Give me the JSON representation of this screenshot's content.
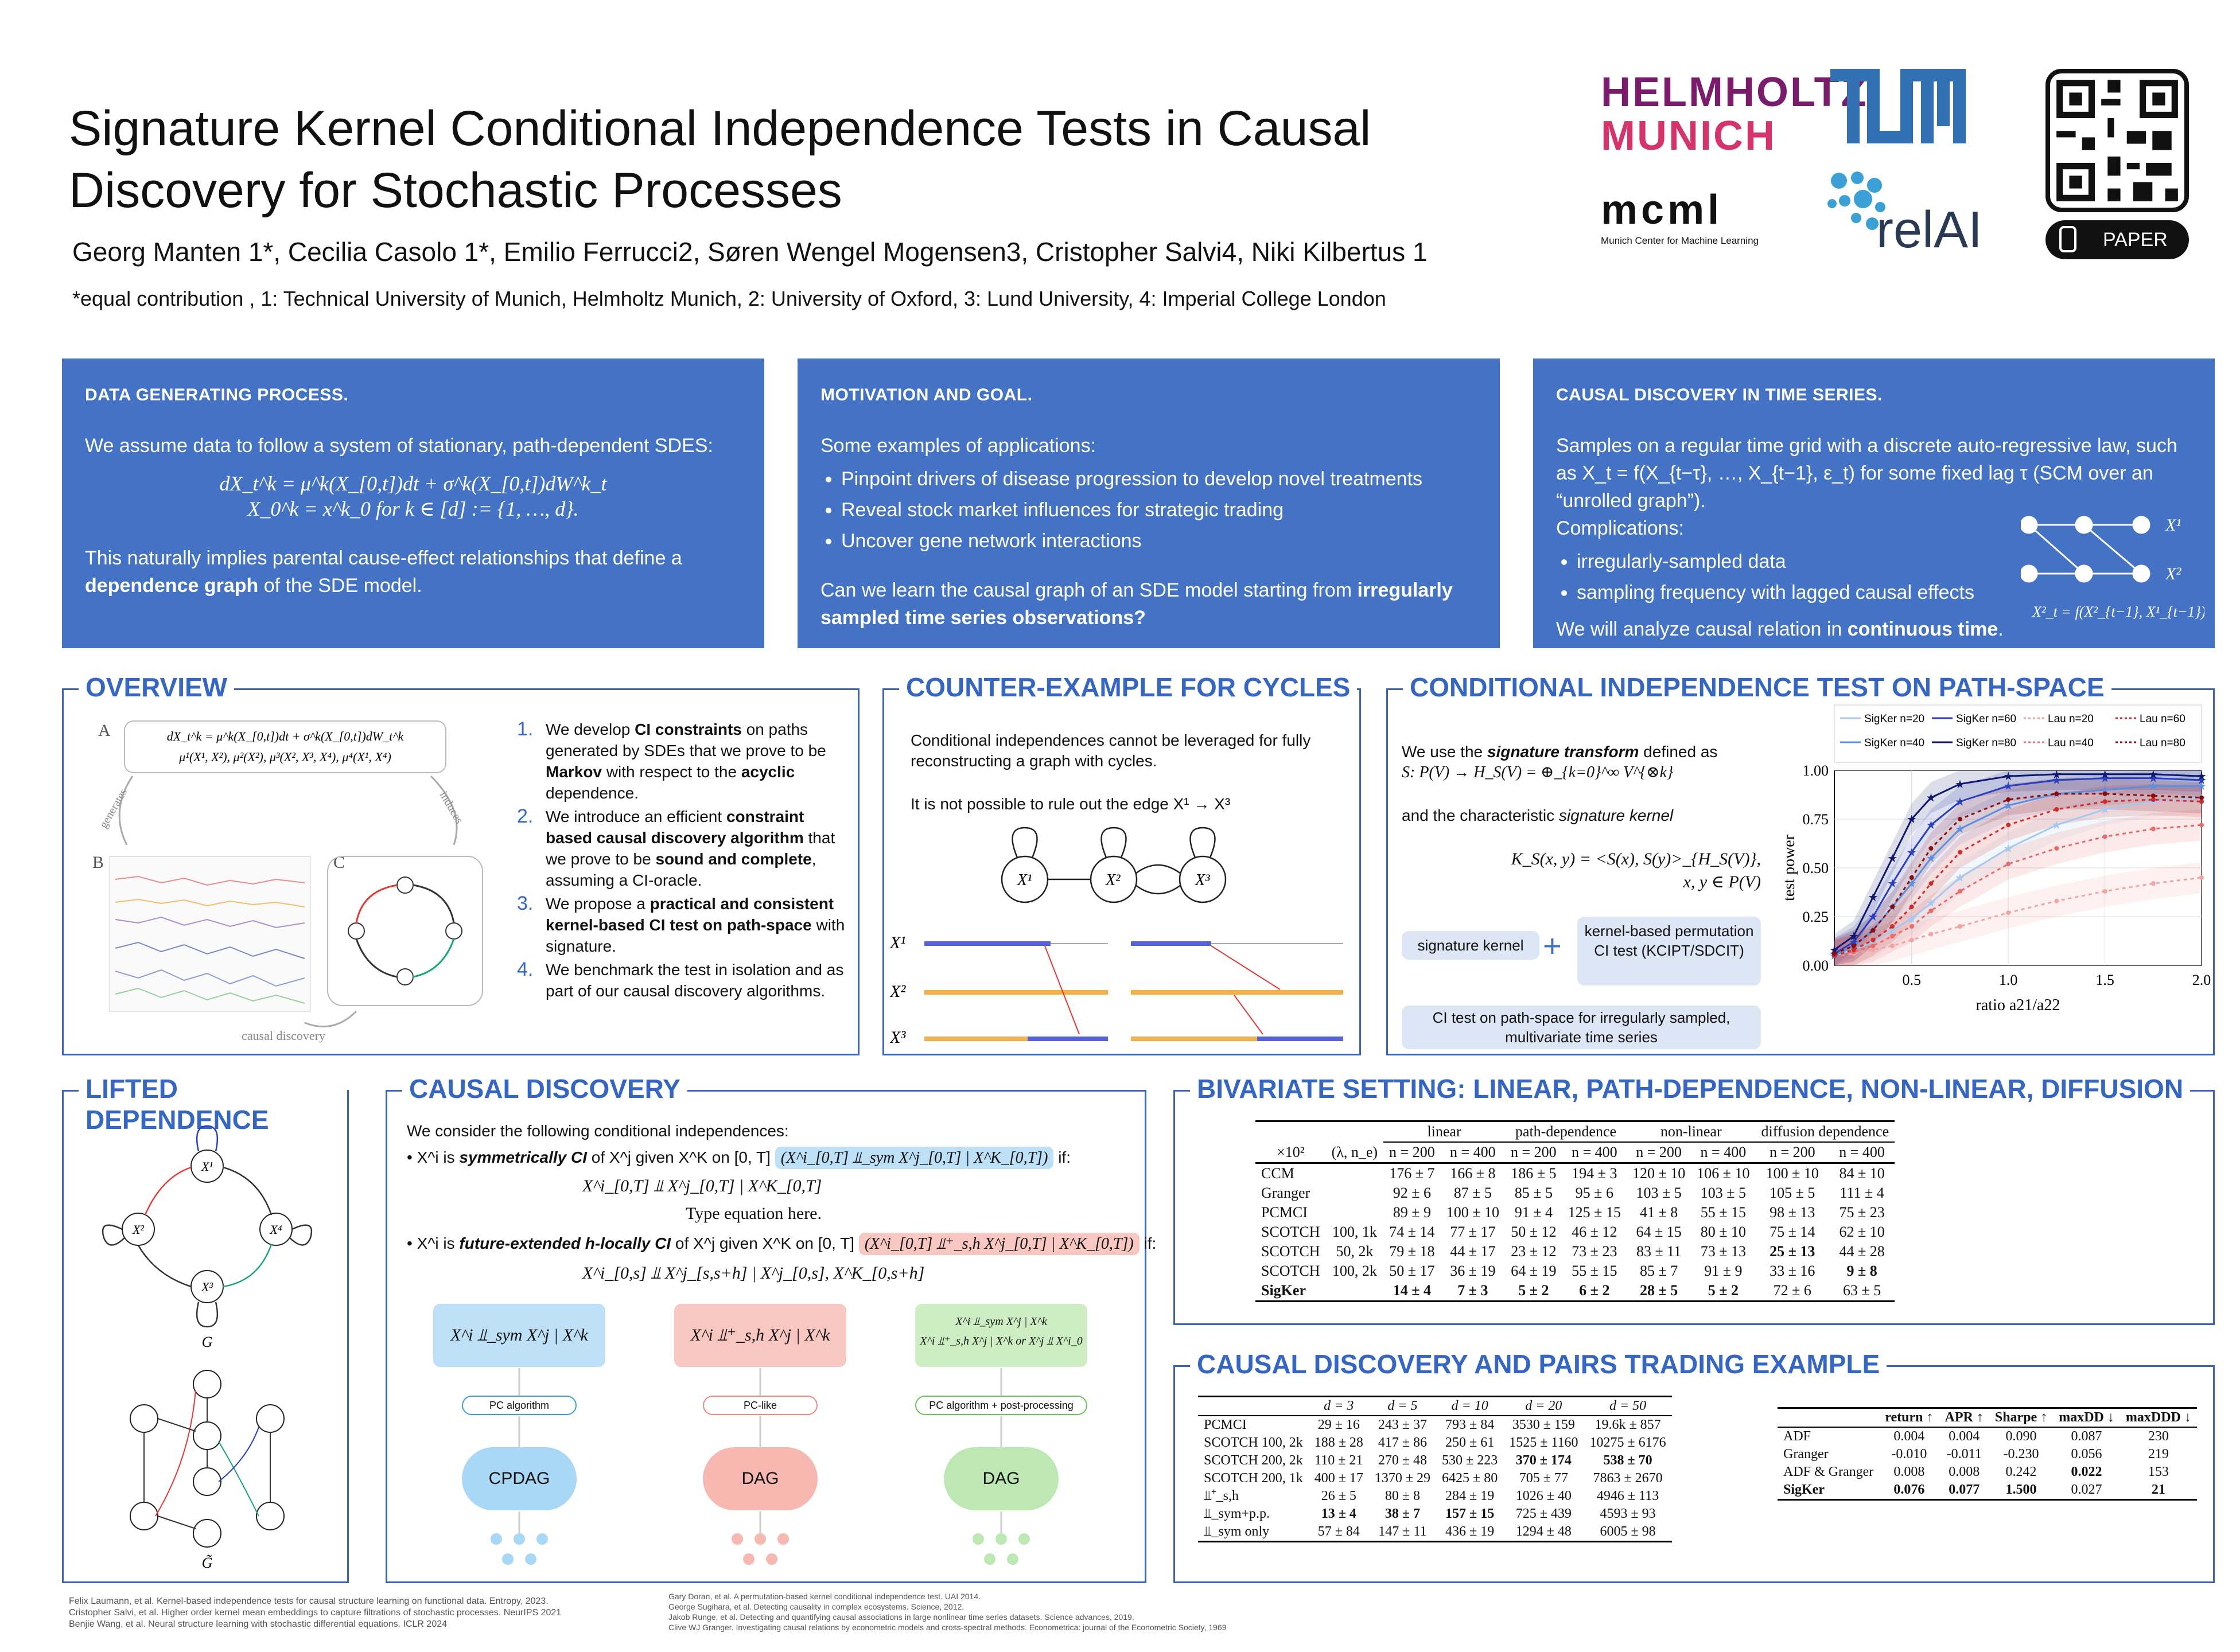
{
  "header": {
    "title": "Signature Kernel Conditional Independence Tests in Causal Discovery for Stochastic Processes",
    "authors": "Georg Manten 1*, Cecilia Casolo 1*, Emilio Ferrucci2, Søren Wengel Mogensen3, Cristopher Salvi4, Niki Kilbertus 1",
    "affiliations": "*equal contribution , 1: Technical University of Munich, Helmholtz Munich, 2: University of Oxford, 3: Lund University, 4: Imperial College London"
  },
  "logos": {
    "helmholtz1": "HELMHOLTZ",
    "helmholtz2": "MUNICH",
    "mcml": "mcml",
    "mcml_sub": "Munich Center for Machine Learning",
    "relai": "relAI",
    "paper_button": "PAPER"
  },
  "boxes": {
    "dgp": {
      "title": "DATA GENERATING PROCESS.",
      "text1": "We assume data to follow a system of stationary, path-dependent SDES:",
      "eq1": "dX_t^k = μ^k(X_[0,t])dt + σ^k(X_[0,t])dW^k_t",
      "eq2": "X_0^k = x^k_0 for k ∈ [d] := {1, …, d}.",
      "text2": "This naturally implies parental cause-effect relationships that define a",
      "text2b": "dependence graph",
      "text2c": " of the SDE model."
    },
    "motivation": {
      "title": "MOTIVATION AND GOAL.",
      "text1": "Some examples of applications:",
      "items": [
        "Pinpoint drivers of disease progression to develop novel treatments",
        "Reveal stock market influences for strategic trading",
        "Uncover gene network interactions"
      ],
      "q1": "Can we learn the causal graph of an SDE model starting from ",
      "q2": "irregularly sampled time series observation",
      "q3": "s?"
    },
    "timeseries": {
      "title": "CAUSAL DISCOVERY IN TIME SERIES.",
      "text1": "Samples on a regular time grid with a discrete auto-regressive law, such as X_t = f(X_{t−τ}, …, X_{t−1}, ε_t) for some fixed lag τ (SCM over an “unrolled graph”).",
      "text2": "Complications:",
      "items": [
        "irregularly-sampled data",
        "sampling frequency with lagged causal effects"
      ],
      "text3a": "We will analyze causal relation in ",
      "text3b": "continuous time",
      "text3c": ".",
      "fig_x1": "X¹",
      "fig_x2": "X²",
      "fig_eq": "X²_t = f(X²_{t−1}, X¹_{t−1})"
    }
  },
  "overview": {
    "title": "OVERVIEW",
    "fig_eq1": "dX_t^k = μ^k(X_[0,t])dt + σ^k(X_[0,t])dW_t^k",
    "fig_eq2": "μ¹(X¹, X²), μ²(X²), μ³(X², X³, X⁴), μ⁴(X¹, X⁴)",
    "fig_labels": [
      "A",
      "B",
      "C"
    ],
    "fig_arrows": [
      "generates",
      "induces",
      "causal discovery"
    ],
    "items": [
      {
        "num": "1.",
        "pre": "We develop ",
        "b1": "CI constraints",
        "mid": " on paths generated by SDEs that we prove to be ",
        "b2": "Markov",
        "mid2": " with respect to the ",
        "b3": "acyclic",
        "post": " dependence."
      },
      {
        "num": "2.",
        "pre": "We introduce an efficient ",
        "b1": "constraint based causal discovery algorithm",
        "mid": " that we prove to be ",
        "b2": "sound and complete",
        "mid2": ", assuming a CI-oracle.",
        "b3": "",
        "post": ""
      },
      {
        "num": "3.",
        "pre": "We propose a ",
        "b1": "practical and consistent kernel-based CI test on path-space",
        "mid": " with signature.",
        "b2": "",
        "mid2": "",
        "b3": "",
        "post": ""
      },
      {
        "num": "4.",
        "pre": "We benchmark the test in isolation and as part of our causal discovery algorithms.",
        "b1": "",
        "mid": "",
        "b2": "",
        "mid2": "",
        "b3": "",
        "post": ""
      }
    ]
  },
  "counter": {
    "title": "COUNTER-EXAMPLE FOR CYCLES",
    "text1": "Conditional independences cannot be leveraged for fully reconstructing a graph with cycles.",
    "text2": "It is not possible to rule out the edge X¹ → X³",
    "nodes": [
      "X¹",
      "X²",
      "X³"
    ]
  },
  "citest": {
    "title": "CONDITIONAL INDEPENDENCE TEST ON PATH-SPACE",
    "text1a": "We use the ",
    "text1b": "signature transform",
    "text1c": " defined as",
    "eq1": "S: P(V) → H_S(V) = ⊕_{k=0}^∞ V^{⊗k}",
    "text2a": "and the characteristic ",
    "text2b": "signature kernel",
    "eq2": "K_S(x, y) = <S(x), S(y)>_{H_S(V)},",
    "eq3": "x, y ∈ P(V)",
    "box1": "signature kernel",
    "box2": "kernel-based permutation CI test (KCIPT/SDCIT)",
    "box3": "CI test on path-space for irregularly sampled, multivariate time series"
  },
  "chart_data": {
    "type": "line",
    "xlabel": "ratio a21/a22",
    "ylabel": "test power",
    "xlim": [
      0.1,
      2.0
    ],
    "ylim": [
      0.0,
      1.0
    ],
    "x": [
      0.1,
      0.2,
      0.3,
      0.4,
      0.5,
      0.6,
      0.75,
      1.0,
      1.25,
      1.5,
      1.75,
      2.0
    ],
    "xticks": [
      "0.5",
      "1.0",
      "1.5",
      "2.0"
    ],
    "yticks": [
      "0.00",
      "0.25",
      "0.50",
      "0.75",
      "1.00"
    ],
    "series": [
      {
        "name": "SigKer n=20",
        "color": "#a9c8ee",
        "dash": false,
        "values": [
          0.05,
          0.08,
          0.12,
          0.18,
          0.24,
          0.32,
          0.45,
          0.6,
          0.72,
          0.8,
          0.84,
          0.86
        ]
      },
      {
        "name": "SigKer n=40",
        "color": "#5c8fe0",
        "dash": false,
        "values": [
          0.05,
          0.1,
          0.18,
          0.3,
          0.42,
          0.55,
          0.7,
          0.82,
          0.88,
          0.9,
          0.92,
          0.92
        ]
      },
      {
        "name": "SigKer n=60",
        "color": "#2a3fbf",
        "dash": false,
        "values": [
          0.06,
          0.12,
          0.25,
          0.42,
          0.58,
          0.72,
          0.84,
          0.92,
          0.95,
          0.96,
          0.96,
          0.95
        ]
      },
      {
        "name": "SigKer n=80",
        "color": "#10186e",
        "dash": false,
        "values": [
          0.08,
          0.15,
          0.35,
          0.55,
          0.75,
          0.86,
          0.93,
          0.97,
          0.98,
          0.98,
          0.98,
          0.97
        ]
      },
      {
        "name": "Lau n=20",
        "color": "#f2a3a3",
        "dash": true,
        "values": [
          0.05,
          0.06,
          0.08,
          0.1,
          0.13,
          0.16,
          0.2,
          0.27,
          0.33,
          0.38,
          0.42,
          0.45
        ]
      },
      {
        "name": "Lau n=40",
        "color": "#e86b6b",
        "dash": true,
        "values": [
          0.05,
          0.07,
          0.1,
          0.15,
          0.2,
          0.28,
          0.38,
          0.52,
          0.6,
          0.66,
          0.7,
          0.72
        ]
      },
      {
        "name": "Lau n=60",
        "color": "#d22b2b",
        "dash": true,
        "values": [
          0.05,
          0.08,
          0.13,
          0.2,
          0.3,
          0.42,
          0.58,
          0.72,
          0.8,
          0.84,
          0.85,
          0.84
        ]
      },
      {
        "name": "Lau n=80",
        "color": "#8b0c0c",
        "dash": true,
        "values": [
          0.06,
          0.1,
          0.18,
          0.3,
          0.45,
          0.6,
          0.75,
          0.85,
          0.88,
          0.88,
          0.87,
          0.86
        ]
      }
    ]
  },
  "lifted": {
    "title": "LIFTED DEPENDENCE",
    "g_label": "G",
    "g2_label": "G̃"
  },
  "causal": {
    "title": "CAUSAL DISCOVERY",
    "intro": "We consider the following conditional independences:",
    "b1a": "X^i is ",
    "b1b": "symmetrically CI",
    "b1c": " of X^j given X^K on [0, T]",
    "b1box": "(X^i_[0,T] ⫫_sym X^j_[0,T] | X^K_[0,T])",
    "b1if": " if:",
    "b1eq": "X^i_[0,T] ⫫ X^j_[0,T] | X^K_[0,T]",
    "typeeq": "Type equation here.",
    "b2a": "X^i is ",
    "b2b": "future-extended h-locally CI",
    "b2c": " of X^j given X^K on [0, T]",
    "b2box": "(X^i_[0,T] ⫫⁺_s,h X^j_[0,T] | X^K_[0,T])",
    "b2if": " if:",
    "b2eq": "X^i_[0,s] ⫫ X^j_[s,s+h] | X^j_[0,s], X^K_[0,s+h]",
    "cards": [
      "X^i ⫫_sym X^j | X^k",
      "X^i ⫫⁺_s,h X^j | X^k",
      "X^i ⫫_sym X^j | X^k"
    ],
    "card3b": "X^i ⫫⁺_s,h X^j | X^k or X^j ⫫ X^i_0",
    "algos": [
      "PC algorithm",
      "PC-like",
      "PC algorithm + post-processing"
    ],
    "outputs": [
      "CPDAG",
      "DAG",
      "DAG"
    ]
  },
  "bivariate": {
    "title": "BIVARIATE SETTING: LINEAR, PATH-DEPENDENCE, NON-LINEAR, DIFFUSION",
    "groups": [
      "linear",
      "path-dependence",
      "non-linear",
      "diffusion dependence"
    ],
    "col0": "×10²",
    "col1": "(λ, n_e)",
    "ns": [
      "n = 200",
      "n = 400",
      "n = 200",
      "n = 400",
      "n = 200",
      "n = 400",
      "n = 200",
      "n = 400"
    ],
    "rows": [
      {
        "m": "CCM",
        "p": "",
        "v": [
          "176 ± 7",
          "166 ± 8",
          "186 ± 5",
          "194 ± 3",
          "120 ± 10",
          "106 ± 10",
          "100 ± 10",
          "84 ± 10"
        ],
        "b": []
      },
      {
        "m": "Granger",
        "p": "",
        "v": [
          "92 ± 6",
          "87 ± 5",
          "85 ± 5",
          "95 ± 6",
          "103 ± 5",
          "103 ± 5",
          "105 ± 5",
          "111 ± 4"
        ],
        "b": []
      },
      {
        "m": "PCMCI",
        "p": "",
        "v": [
          "89 ± 9",
          "100 ± 10",
          "91 ± 4",
          "125 ± 15",
          "41 ± 8",
          "55 ± 15",
          "98 ± 13",
          "75 ± 23"
        ],
        "b": []
      },
      {
        "m": "SCOTCH",
        "p": "100, 1k",
        "v": [
          "74 ± 14",
          "77 ± 17",
          "50 ± 12",
          "46 ± 12",
          "64 ± 15",
          "80 ± 10",
          "75 ± 14",
          "62 ± 10"
        ],
        "b": []
      },
      {
        "m": "SCOTCH",
        "p": "50, 2k",
        "v": [
          "79 ± 18",
          "44 ± 17",
          "23 ± 12",
          "73 ± 23",
          "83 ± 11",
          "73 ± 13",
          "25 ± 13",
          "44 ± 28"
        ],
        "b": [
          6
        ]
      },
      {
        "m": "SCOTCH",
        "p": "100, 2k",
        "v": [
          "50 ± 17",
          "36 ± 19",
          "64 ± 19",
          "55 ± 15",
          "85 ± 7",
          "91 ± 9",
          "33 ± 16",
          "9 ± 8"
        ],
        "b": [
          7
        ]
      },
      {
        "m": "SigKer",
        "p": "",
        "v": [
          "14 ± 4",
          "7 ± 3",
          "5 ± 2",
          "6 ± 2",
          "28 ± 5",
          "5 ± 2",
          "72 ± 6",
          "63 ± 5"
        ],
        "b": [
          0,
          1,
          2,
          3,
          4,
          5
        ]
      }
    ]
  },
  "pairs": {
    "title": "CAUSAL DISCOVERY AND PAIRS TRADING EXAMPLE",
    "ds": [
      "d = 3",
      "d = 5",
      "d = 10",
      "d = 20",
      "d = 50"
    ],
    "rows": [
      {
        "m": "PCMCI",
        "v": [
          "29 ± 16",
          "243 ± 37",
          "793 ± 84",
          "3530 ± 159",
          "19.6k ± 857"
        ],
        "b": []
      },
      {
        "m": "SCOTCH 100, 2k",
        "v": [
          "188 ± 28",
          "417 ± 86",
          "250 ± 61",
          "1525 ± 1160",
          "10275 ± 6176"
        ],
        "b": []
      },
      {
        "m": "SCOTCH 200, 2k",
        "v": [
          "110 ± 21",
          "270 ± 48",
          "530 ± 223",
          "370 ± 174",
          "538 ± 70"
        ],
        "b": [
          3,
          4
        ]
      },
      {
        "m": "SCOTCH 200, 1k",
        "v": [
          "400 ± 17",
          "1370 ± 29",
          "6425 ± 80",
          "705 ± 77",
          "7863 ± 2670"
        ],
        "b": []
      },
      {
        "m": "⫫⁺_s,h",
        "v": [
          "26 ± 5",
          "80 ± 8",
          "284 ± 19",
          "1026 ± 40",
          "4946 ± 113"
        ],
        "b": []
      },
      {
        "m": "⫫_sym+p.p.",
        "v": [
          "13 ± 4",
          "38 ± 7",
          "157 ± 15",
          "725 ± 439",
          "4593 ± 93"
        ],
        "b": [
          0,
          1,
          2
        ]
      },
      {
        "m": "⫫_sym only",
        "v": [
          "57 ± 84",
          "147 ± 11",
          "436 ± 19",
          "1294 ± 48",
          "6005 ± 98"
        ],
        "b": []
      }
    ],
    "trade_cols": [
      "return ↑",
      "APR ↑",
      "Sharpe ↑",
      "maxDD ↓",
      "maxDDD ↓"
    ],
    "trade_rows": [
      {
        "m": "ADF",
        "v": [
          "0.004",
          "0.004",
          "0.090",
          "0.087",
          "230"
        ],
        "b": []
      },
      {
        "m": "Granger",
        "v": [
          "-0.010",
          "-0.011",
          "-0.230",
          "0.056",
          "219"
        ],
        "b": []
      },
      {
        "m": "ADF & Granger",
        "v": [
          "0.008",
          "0.008",
          "0.242",
          "0.022",
          "153"
        ],
        "b": [
          3
        ]
      },
      {
        "m": "SigKer",
        "v": [
          "0.076",
          "0.077",
          "1.500",
          "0.027",
          "21"
        ],
        "b": [
          0,
          1,
          2,
          4
        ]
      }
    ]
  },
  "refs": {
    "left": [
      "Felix Laumann, et al. Kernel-based independence tests for causal structure learning on functional data. Entropy, 2023.",
      "Cristopher Salvi, et al. Higher order kernel mean embeddings to capture filtrations of stochastic processes. NeurIPS 2021",
      "Benjie Wang, et al. Neural structure learning with stochastic differential equations. ICLR 2024"
    ],
    "right": [
      "Gary Doran, et al. A permutation-based kernel conditional independence test. UAI 2014.",
      "George Sugihara, et al. Detecting causality in complex ecosystems. Science, 2012.",
      "Jakob Runge, et al. Detecting and quantifying causal associations in large nonlinear time series datasets. Science advances, 2019.",
      "Clive WJ Granger. Investigating causal relations by econometric models and cross-spectral methods. Econometrica: journal of the Econometric Society, 1969"
    ]
  }
}
